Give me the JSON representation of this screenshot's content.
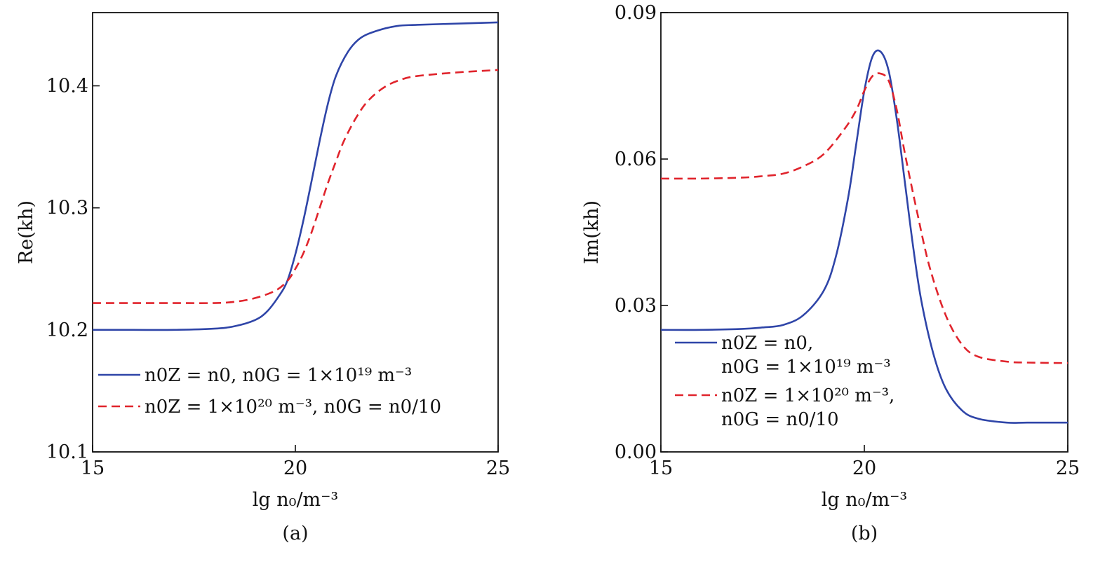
{
  "chart_data": [
    {
      "type": "line",
      "panel_label": "(a)",
      "xlabel": "lg n₀/m⁻³",
      "ylabel": "Re(kh)",
      "xlim": [
        15,
        25
      ],
      "ylim": [
        10.1,
        10.46
      ],
      "x_ticks": [
        "15",
        "20",
        "25"
      ],
      "y_ticks": [
        "10.1",
        "10.2",
        "10.3",
        "10.4"
      ],
      "x_tick_values": [
        15,
        20,
        25
      ],
      "y_tick_values": [
        10.1,
        10.2,
        10.3,
        10.4
      ],
      "legend_position": "lower-left",
      "series": [
        {
          "name": "n0Z = n0, n0G = 1×10¹⁹ m⁻³",
          "legend_lines": [
            "n0Z = n0, n0G = 1×10¹⁹ m⁻³"
          ],
          "color": "#2f45a8",
          "style": "solid",
          "x": [
            15,
            16,
            17,
            18,
            18.5,
            19,
            19.3,
            19.6,
            19.8,
            20.0,
            20.2,
            20.4,
            20.6,
            20.8,
            21.0,
            21.3,
            21.6,
            22.0,
            22.5,
            23,
            24,
            25
          ],
          "y": [
            10.2,
            10.2,
            10.2,
            10.201,
            10.203,
            10.208,
            10.215,
            10.228,
            10.24,
            10.262,
            10.29,
            10.322,
            10.355,
            10.385,
            10.408,
            10.428,
            10.439,
            10.445,
            10.449,
            10.45,
            10.451,
            10.452
          ]
        },
        {
          "name": "n0Z = 1×10²⁰ m⁻³, n0G = n0/10",
          "legend_lines": [
            "n0Z = 1×10²⁰ m⁻³, n0G = n0/10"
          ],
          "color": "#e0242c",
          "style": "dashed",
          "x": [
            15,
            16,
            17,
            18,
            18.5,
            19,
            19.5,
            19.8,
            20.0,
            20.2,
            20.4,
            20.6,
            20.8,
            21.0,
            21.2,
            21.5,
            21.8,
            22.2,
            22.6,
            23,
            24,
            25
          ],
          "y": [
            10.222,
            10.222,
            10.222,
            10.222,
            10.223,
            10.226,
            10.232,
            10.24,
            10.25,
            10.263,
            10.28,
            10.3,
            10.32,
            10.338,
            10.355,
            10.374,
            10.388,
            10.399,
            10.405,
            10.408,
            10.411,
            10.413
          ]
        }
      ]
    },
    {
      "type": "line",
      "panel_label": "(b)",
      "xlabel": "lg n₀/m⁻³",
      "ylabel": "Im(kh)",
      "xlim": [
        15,
        25
      ],
      "ylim": [
        0.0,
        0.09
      ],
      "x_ticks": [
        "15",
        "20",
        "25"
      ],
      "y_ticks": [
        "0.00",
        "0.03",
        "0.06",
        "0.09"
      ],
      "x_tick_values": [
        15,
        20,
        25
      ],
      "y_tick_values": [
        0.0,
        0.03,
        0.06,
        0.09
      ],
      "legend_position": "lower-left",
      "series": [
        {
          "name": "n0Z = n0, n0G = 1×10¹⁹ m⁻³",
          "legend_lines": [
            "n0Z = n0,",
            "n0G = 1×10¹⁹ m⁻³"
          ],
          "color": "#2f45a8",
          "style": "solid",
          "x": [
            15,
            16,
            17,
            17.5,
            18,
            18.5,
            19.0,
            19.3,
            19.6,
            19.8,
            20.0,
            20.2,
            20.4,
            20.6,
            20.8,
            21.0,
            21.2,
            21.4,
            21.7,
            22.0,
            22.4,
            22.8,
            23.5,
            24,
            25
          ],
          "y": [
            0.025,
            0.025,
            0.0252,
            0.0255,
            0.026,
            0.028,
            0.033,
            0.04,
            0.052,
            0.063,
            0.074,
            0.081,
            0.082,
            0.078,
            0.068,
            0.055,
            0.042,
            0.031,
            0.02,
            0.013,
            0.0085,
            0.0068,
            0.006,
            0.006,
            0.006
          ]
        },
        {
          "name": "n0Z = 1×10²⁰ m⁻³, n0G = n0/10",
          "legend_lines": [
            "n0Z = 1×10²⁰ m⁻³,",
            "n0G = n0/10"
          ],
          "color": "#e0242c",
          "style": "dashed",
          "x": [
            15,
            16,
            17,
            17.5,
            18,
            18.5,
            19.0,
            19.5,
            19.8,
            20.0,
            20.2,
            20.4,
            20.6,
            20.8,
            21.0,
            21.3,
            21.6,
            22.0,
            22.4,
            22.8,
            23.5,
            24,
            25
          ],
          "y": [
            0.056,
            0.056,
            0.0562,
            0.0565,
            0.057,
            0.0585,
            0.061,
            0.066,
            0.07,
            0.074,
            0.077,
            0.0775,
            0.076,
            0.07,
            0.061,
            0.049,
            0.038,
            0.028,
            0.022,
            0.0195,
            0.0185,
            0.0183,
            0.0182
          ]
        }
      ]
    }
  ]
}
